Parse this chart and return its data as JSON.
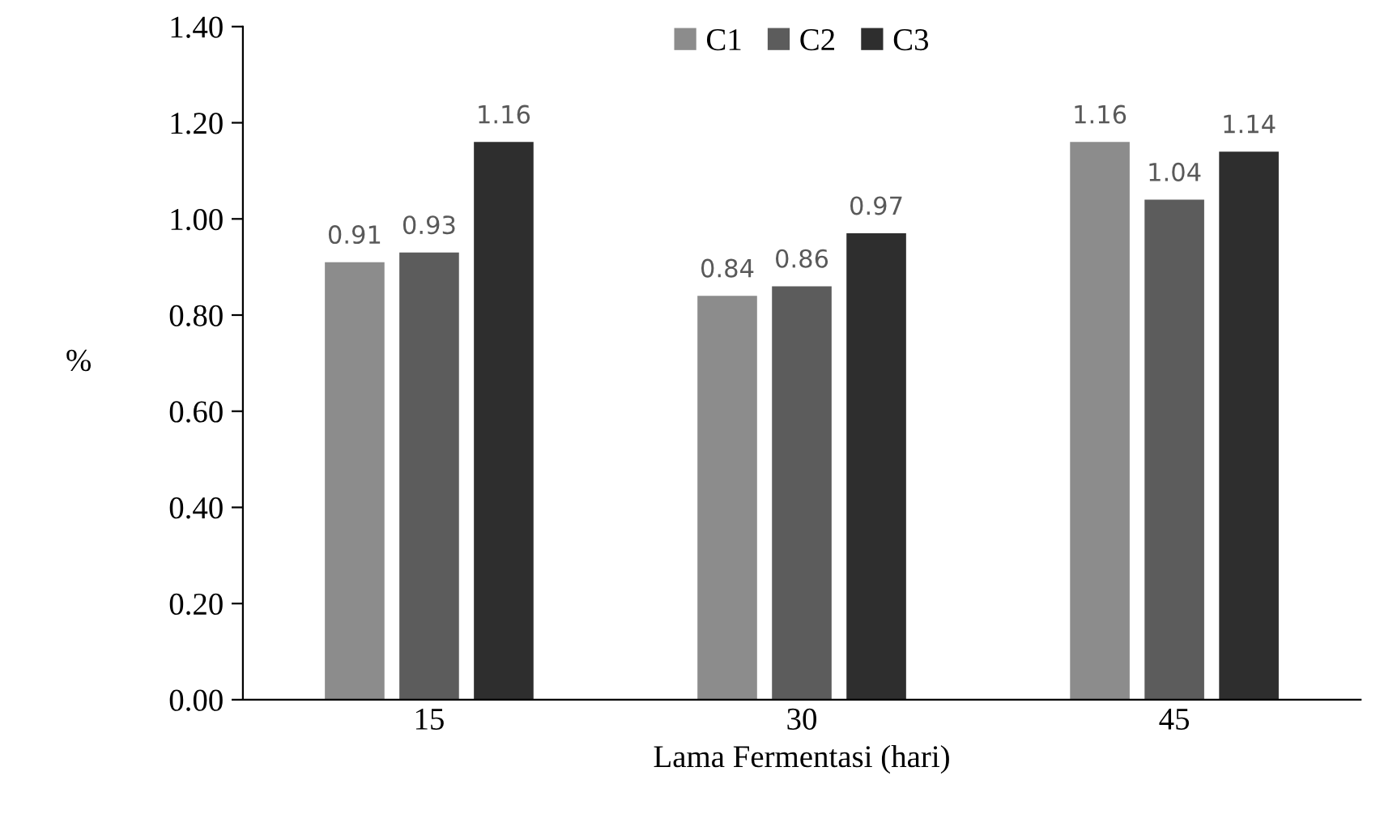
{
  "chart_data": {
    "type": "bar",
    "xlabel": "Lama Fermentasi (hari)",
    "ylabel": "%",
    "categories": [
      "15",
      "30",
      "45"
    ],
    "series": [
      {
        "name": "C1",
        "color": "#8c8c8c",
        "values": [
          0.91,
          0.84,
          1.16
        ]
      },
      {
        "name": "C2",
        "color": "#5c5c5c",
        "values": [
          0.93,
          0.86,
          1.04
        ]
      },
      {
        "name": "C3",
        "color": "#2e2e2e",
        "values": [
          1.16,
          0.97,
          1.14
        ]
      }
    ],
    "ylim": [
      0,
      1.4
    ],
    "yticks": [
      {
        "value": 0,
        "label": "0.00"
      },
      {
        "value": 0.2,
        "label": "0.20"
      },
      {
        "value": 0.4,
        "label": "0.40"
      },
      {
        "value": 0.6,
        "label": "0.60"
      },
      {
        "value": 0.8,
        "label": "0.80"
      },
      {
        "value": 1.0,
        "label": "1.00"
      },
      {
        "value": 1.2,
        "label": "1.20"
      },
      {
        "value": 1.4,
        "label": "1.40"
      }
    ],
    "data_labels": true,
    "grid": false,
    "legend": "top"
  }
}
